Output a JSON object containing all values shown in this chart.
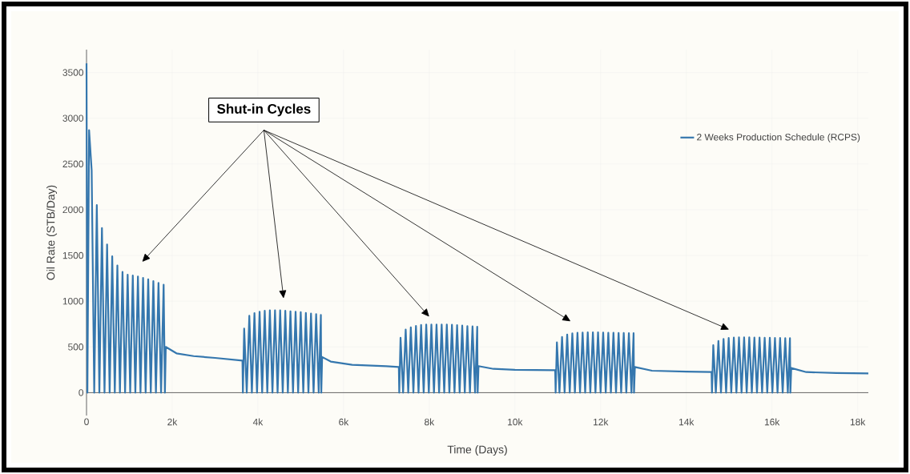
{
  "chart_data": {
    "type": "line",
    "xlabel": "Time (Days)",
    "ylabel": "Oil Rate (STB/Day)",
    "annotations": [
      "Shut-in Cycles"
    ],
    "xlim": [
      0,
      18250
    ],
    "ylim": [
      -250,
      3750
    ],
    "xticks": [
      0,
      {
        "value": 2000,
        "label": "2k"
      },
      {
        "value": 4000,
        "label": "4k"
      },
      {
        "value": 6000,
        "label": "6k"
      },
      {
        "value": 8000,
        "label": "8k"
      },
      {
        "value": 10000,
        "label": "10k"
      },
      {
        "value": 12000,
        "label": "12k"
      },
      {
        "value": 14000,
        "label": "14k"
      },
      {
        "value": 16000,
        "label": "16k"
      },
      {
        "value": 18000,
        "label": "18k"
      }
    ],
    "yticks": [
      0,
      500,
      1000,
      1500,
      2000,
      2500,
      3000,
      3500
    ],
    "grid": true,
    "legend": "top right",
    "series": [
      {
        "name": "2 Weeks Production Schedule (RCPS)",
        "color": "#3577ae",
        "x": [
          0,
          20,
          60,
          120,
          180,
          240,
          300,
          360,
          420,
          480,
          540,
          600,
          660,
          720,
          780,
          840,
          900,
          960,
          1020,
          1080,
          1140,
          1200,
          1260,
          1320,
          1380,
          1440,
          1500,
          1560,
          1620,
          1680,
          1740,
          1800,
          1830,
          1850,
          2100,
          2500,
          3000,
          3640,
          3650,
          3680,
          3740,
          3800,
          3860,
          3920,
          3980,
          4040,
          4100,
          4160,
          4220,
          4280,
          4340,
          4400,
          4460,
          4520,
          4580,
          4640,
          4700,
          4760,
          4820,
          4880,
          4940,
          5000,
          5060,
          5120,
          5180,
          5240,
          5300,
          5360,
          5420,
          5470,
          5480,
          5500,
          5700,
          6200,
          7000,
          7290,
          7300,
          7330,
          7390,
          7450,
          7510,
          7570,
          7630,
          7690,
          7750,
          7810,
          7870,
          7930,
          7990,
          8050,
          8110,
          8170,
          8230,
          8290,
          8350,
          8410,
          8470,
          8530,
          8590,
          8650,
          8710,
          8770,
          8830,
          8890,
          8950,
          9010,
          9070,
          9120,
          9130,
          9150,
          9500,
          10000,
          10940,
          10950,
          10980,
          11040,
          11100,
          11160,
          11220,
          11280,
          11340,
          11400,
          11460,
          11520,
          11580,
          11640,
          11700,
          11760,
          11820,
          11880,
          11940,
          12000,
          12060,
          12120,
          12180,
          12240,
          12300,
          12360,
          12420,
          12480,
          12540,
          12600,
          12660,
          12720,
          12770,
          12780,
          12800,
          13200,
          14000,
          14590,
          14600,
          14630,
          14690,
          14750,
          14810,
          14870,
          14930,
          14990,
          15050,
          15110,
          15170,
          15230,
          15290,
          15350,
          15410,
          15470,
          15530,
          15590,
          15650,
          15710,
          15770,
          15830,
          15890,
          15950,
          16010,
          16070,
          16130,
          16190,
          16250,
          16310,
          16370,
          16420,
          16430,
          16450,
          16800,
          17500,
          18250
        ],
        "values": [
          3600,
          0,
          2870,
          2430,
          0,
          2050,
          0,
          1800,
          0,
          1620,
          0,
          1490,
          0,
          1390,
          0,
          1320,
          0,
          1290,
          0,
          1280,
          0,
          1270,
          0,
          1255,
          0,
          1240,
          0,
          1220,
          0,
          1200,
          0,
          1180,
          0,
          500,
          430,
          400,
          380,
          350,
          0,
          700,
          0,
          840,
          0,
          870,
          0,
          885,
          0,
          895,
          0,
          900,
          0,
          900,
          0,
          900,
          0,
          895,
          0,
          890,
          0,
          885,
          0,
          880,
          0,
          872,
          0,
          865,
          0,
          858,
          0,
          850,
          0,
          390,
          340,
          305,
          290,
          280,
          0,
          600,
          0,
          690,
          0,
          715,
          0,
          730,
          0,
          740,
          0,
          745,
          0,
          745,
          0,
          745,
          0,
          745,
          0,
          745,
          0,
          742,
          0,
          738,
          0,
          733,
          0,
          728,
          0,
          724,
          0,
          720,
          0,
          290,
          260,
          250,
          245,
          0,
          550,
          0,
          610,
          0,
          635,
          0,
          648,
          0,
          655,
          0,
          658,
          0,
          660,
          0,
          660,
          0,
          660,
          0,
          658,
          0,
          656,
          0,
          655,
          0,
          653,
          0,
          652,
          0,
          651,
          0,
          650,
          0,
          280,
          240,
          230,
          225,
          0,
          520,
          0,
          565,
          0,
          588,
          0,
          597,
          0,
          602,
          0,
          605,
          0,
          605,
          0,
          604,
          0,
          603,
          0,
          602,
          0,
          601,
          0,
          600,
          0,
          598,
          0,
          597,
          0,
          596,
          0,
          595,
          0,
          270,
          225,
          215,
          210
        ]
      }
    ]
  }
}
